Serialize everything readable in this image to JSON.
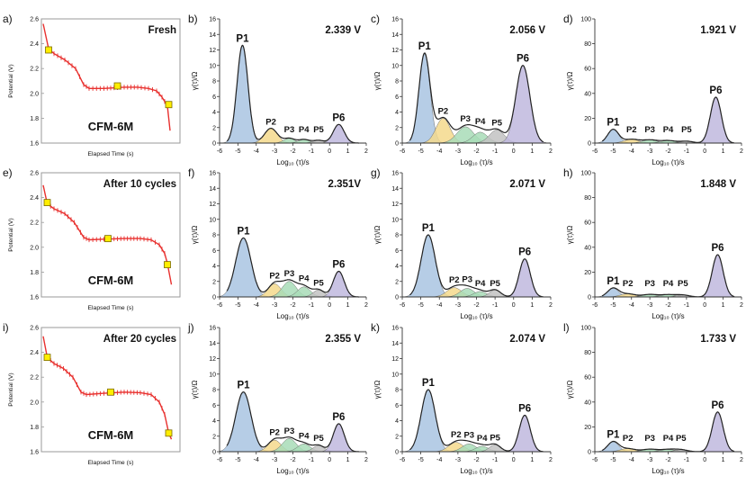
{
  "colors": {
    "discharge_line": "#e8302e",
    "marker_fill": "#ffee00",
    "marker_stroke": "#7a6a00",
    "P1": "#a9c4e2",
    "P2": "#f4d98c",
    "P3": "#a8dcb7",
    "P4": "#a8dcb7",
    "P5": "#c2c2c2",
    "P6": "#bfb8de",
    "envelope": "#222222"
  },
  "rows": [
    {
      "discharge": {
        "panel_label": "a)",
        "title": "Fresh",
        "sample": "CFM-6M",
        "ylabel": "Potential (V)",
        "xlabel": "Elapsed Time (s)",
        "ylim": [
          1.6,
          2.6
        ],
        "yticks": [
          "1.6",
          "1.8",
          "2.0",
          "2.2",
          "2.4",
          "2.6"
        ],
        "time_range": [
          0,
          100
        ],
        "curve": [
          [
            0,
            2.56
          ],
          [
            4,
            2.36
          ],
          [
            8,
            2.32
          ],
          [
            16,
            2.27
          ],
          [
            24,
            2.2
          ],
          [
            30,
            2.07
          ],
          [
            34,
            2.04
          ],
          [
            45,
            2.04
          ],
          [
            60,
            2.05
          ],
          [
            70,
            2.05
          ],
          [
            78,
            2.04
          ],
          [
            84,
            2.02
          ],
          [
            88,
            1.97
          ],
          [
            92,
            1.9
          ],
          [
            94,
            1.7
          ]
        ],
        "markers": [
          [
            4,
            2.35
          ],
          [
            55,
            2.06
          ],
          [
            93,
            1.91
          ]
        ]
      },
      "drt": [
        {
          "panel_label": "b)",
          "voltage": "2.339 V",
          "ylim": [
            0,
            16
          ],
          "peaks": [
            {
              "label": "P1",
              "mu": -4.75,
              "sigma": 0.3,
              "height": 12.6
            },
            {
              "label": "P2",
              "mu": -3.2,
              "sigma": 0.35,
              "height": 1.9
            },
            {
              "label": "P3",
              "mu": -2.2,
              "sigma": 0.3,
              "height": 0.6
            },
            {
              "label": "P4",
              "mu": -1.4,
              "sigma": 0.3,
              "height": 0.45
            },
            {
              "label": "P5",
              "mu": -0.6,
              "sigma": 0.3,
              "height": 0.35
            },
            {
              "label": "P6",
              "mu": 0.5,
              "sigma": 0.3,
              "height": 2.4
            }
          ]
        },
        {
          "panel_label": "c)",
          "voltage": "2.056 V",
          "ylim": [
            0,
            16
          ],
          "peaks": [
            {
              "label": "P1",
              "mu": -4.8,
              "sigma": 0.3,
              "height": 11.5
            },
            {
              "label": "P2",
              "mu": -3.8,
              "sigma": 0.38,
              "height": 3.2
            },
            {
              "label": "P3",
              "mu": -2.6,
              "sigma": 0.45,
              "height": 2.1
            },
            {
              "label": "P4",
              "mu": -1.8,
              "sigma": 0.4,
              "height": 1.4
            },
            {
              "label": "P5",
              "mu": -0.9,
              "sigma": 0.4,
              "height": 1.7
            },
            {
              "label": "P6",
              "mu": 0.5,
              "sigma": 0.38,
              "height": 10.0
            }
          ]
        },
        {
          "panel_label": "d)",
          "voltage": "1.921 V",
          "ylim": [
            0,
            100
          ],
          "peaks": [
            {
              "label": "P1",
              "mu": -5.0,
              "sigma": 0.3,
              "height": 11
            },
            {
              "label": "P2",
              "mu": -4.0,
              "sigma": 0.4,
              "height": 3
            },
            {
              "label": "P3",
              "mu": -3.0,
              "sigma": 0.4,
              "height": 2.5
            },
            {
              "label": "P4",
              "mu": -2.0,
              "sigma": 0.4,
              "height": 2
            },
            {
              "label": "P5",
              "mu": -1.0,
              "sigma": 0.35,
              "height": 1.5
            },
            {
              "label": "P6",
              "mu": 0.6,
              "sigma": 0.3,
              "height": 37
            }
          ]
        }
      ]
    },
    {
      "discharge": {
        "panel_label": "e)",
        "title": "After 10 cycles",
        "sample": "CFM-6M",
        "ylabel": "Potential (V)",
        "xlabel": "Elapsed Time (s)",
        "ylim": [
          1.6,
          2.6
        ],
        "yticks": [
          "1.6",
          "1.8",
          "2.0",
          "2.2",
          "2.4",
          "2.6"
        ],
        "time_range": [
          0,
          100
        ],
        "curve": [
          [
            0,
            2.5
          ],
          [
            3,
            2.35
          ],
          [
            8,
            2.31
          ],
          [
            16,
            2.27
          ],
          [
            23,
            2.2
          ],
          [
            30,
            2.08
          ],
          [
            34,
            2.06
          ],
          [
            45,
            2.065
          ],
          [
            60,
            2.07
          ],
          [
            72,
            2.07
          ],
          [
            80,
            2.06
          ],
          [
            86,
            2.02
          ],
          [
            90,
            1.95
          ],
          [
            92,
            1.87
          ],
          [
            95,
            1.7
          ]
        ],
        "markers": [
          [
            3,
            2.36
          ],
          [
            48,
            2.07
          ],
          [
            92,
            1.86
          ]
        ]
      },
      "drt": [
        {
          "panel_label": "f)",
          "voltage": "2.351V",
          "ylim": [
            0,
            16
          ],
          "peaks": [
            {
              "label": "P1",
              "mu": -4.7,
              "sigma": 0.42,
              "height": 7.6
            },
            {
              "label": "P2",
              "mu": -3.0,
              "sigma": 0.35,
              "height": 1.7
            },
            {
              "label": "P3",
              "mu": -2.2,
              "sigma": 0.38,
              "height": 2.0
            },
            {
              "label": "P4",
              "mu": -1.4,
              "sigma": 0.35,
              "height": 1.3
            },
            {
              "label": "P5",
              "mu": -0.6,
              "sigma": 0.3,
              "height": 0.9
            },
            {
              "label": "P6",
              "mu": 0.5,
              "sigma": 0.3,
              "height": 3.3
            }
          ]
        },
        {
          "panel_label": "g)",
          "voltage": "2.071 V",
          "ylim": [
            0,
            16
          ],
          "peaks": [
            {
              "label": "P1",
              "mu": -4.6,
              "sigma": 0.38,
              "height": 8.0
            },
            {
              "label": "P2",
              "mu": -3.2,
              "sigma": 0.4,
              "height": 1.2
            },
            {
              "label": "P3",
              "mu": -2.5,
              "sigma": 0.38,
              "height": 1.1
            },
            {
              "label": "P4",
              "mu": -1.8,
              "sigma": 0.35,
              "height": 0.7
            },
            {
              "label": "P5",
              "mu": -1.0,
              "sigma": 0.3,
              "height": 0.9
            },
            {
              "label": "P6",
              "mu": 0.6,
              "sigma": 0.3,
              "height": 4.9
            }
          ]
        },
        {
          "panel_label": "h)",
          "voltage": "1.848 V",
          "ylim": [
            0,
            100
          ],
          "peaks": [
            {
              "label": "P1",
              "mu": -5.0,
              "sigma": 0.3,
              "height": 7
            },
            {
              "label": "P2",
              "mu": -4.2,
              "sigma": 0.4,
              "height": 2.5
            },
            {
              "label": "P3",
              "mu": -3.0,
              "sigma": 0.4,
              "height": 2
            },
            {
              "label": "P4",
              "mu": -2.0,
              "sigma": 0.4,
              "height": 1.8
            },
            {
              "label": "P5",
              "mu": -1.2,
              "sigma": 0.35,
              "height": 1.5
            },
            {
              "label": "P6",
              "mu": 0.7,
              "sigma": 0.3,
              "height": 34
            }
          ]
        }
      ]
    },
    {
      "discharge": {
        "panel_label": "i)",
        "title": "After 20 cycles",
        "sample": "CFM-6M",
        "ylabel": "Potential (V)",
        "xlabel": "Elapsed Time (s)",
        "ylim": [
          1.6,
          2.6
        ],
        "yticks": [
          "1.6",
          "1.8",
          "2.0",
          "2.2",
          "2.4",
          "2.6"
        ],
        "time_range": [
          0,
          100
        ],
        "curve": [
          [
            0,
            2.53
          ],
          [
            3,
            2.36
          ],
          [
            8,
            2.31
          ],
          [
            15,
            2.27
          ],
          [
            22,
            2.2
          ],
          [
            28,
            2.08
          ],
          [
            32,
            2.06
          ],
          [
            45,
            2.07
          ],
          [
            60,
            2.08
          ],
          [
            72,
            2.075
          ],
          [
            80,
            2.06
          ],
          [
            86,
            2.0
          ],
          [
            90,
            1.9
          ],
          [
            93,
            1.75
          ],
          [
            95,
            1.7
          ]
        ],
        "markers": [
          [
            3,
            2.36
          ],
          [
            50,
            2.08
          ],
          [
            93,
            1.75
          ]
        ]
      },
      "drt": [
        {
          "panel_label": "j)",
          "voltage": "2.355 V",
          "ylim": [
            0,
            16
          ],
          "peaks": [
            {
              "label": "P1",
              "mu": -4.7,
              "sigma": 0.42,
              "height": 7.7
            },
            {
              "label": "P2",
              "mu": -3.0,
              "sigma": 0.35,
              "height": 1.5
            },
            {
              "label": "P3",
              "mu": -2.2,
              "sigma": 0.38,
              "height": 1.7
            },
            {
              "label": "P4",
              "mu": -1.4,
              "sigma": 0.35,
              "height": 1.0
            },
            {
              "label": "P5",
              "mu": -0.6,
              "sigma": 0.3,
              "height": 0.8
            },
            {
              "label": "P6",
              "mu": 0.5,
              "sigma": 0.3,
              "height": 3.6
            }
          ]
        },
        {
          "panel_label": "k)",
          "voltage": "2.074 V",
          "ylim": [
            0,
            16
          ],
          "peaks": [
            {
              "label": "P1",
              "mu": -4.6,
              "sigma": 0.38,
              "height": 8.0
            },
            {
              "label": "P2",
              "mu": -3.1,
              "sigma": 0.4,
              "height": 1.2
            },
            {
              "label": "P3",
              "mu": -2.4,
              "sigma": 0.38,
              "height": 1.0
            },
            {
              "label": "P4",
              "mu": -1.7,
              "sigma": 0.35,
              "height": 0.7
            },
            {
              "label": "P5",
              "mu": -1.0,
              "sigma": 0.3,
              "height": 0.9
            },
            {
              "label": "P6",
              "mu": 0.6,
              "sigma": 0.3,
              "height": 4.7
            }
          ]
        },
        {
          "panel_label": "l)",
          "voltage": "1.733 V",
          "ylim": [
            0,
            100
          ],
          "peaks": [
            {
              "label": "P1",
              "mu": -5.0,
              "sigma": 0.3,
              "height": 8
            },
            {
              "label": "P2",
              "mu": -4.2,
              "sigma": 0.4,
              "height": 2.5
            },
            {
              "label": "P3",
              "mu": -3.0,
              "sigma": 0.4,
              "height": 2
            },
            {
              "label": "P4",
              "mu": -2.0,
              "sigma": 0.4,
              "height": 1.8
            },
            {
              "label": "P5",
              "mu": -1.3,
              "sigma": 0.35,
              "height": 1.5
            },
            {
              "label": "P6",
              "mu": 0.7,
              "sigma": 0.3,
              "height": 32
            }
          ]
        }
      ]
    }
  ],
  "drt_axes": {
    "ylabel": "γ(τ)/Ω",
    "xlabel": "Log₁₀ (τ)/s",
    "xlim": [
      -6,
      2
    ],
    "xticks": [
      "-6",
      "-5",
      "-4",
      "-3",
      "-2",
      "-1",
      "0",
      "1",
      "2"
    ],
    "yticks_small": [
      "0",
      "2",
      "4",
      "6",
      "8",
      "10",
      "12",
      "14",
      "16"
    ],
    "yticks_large": [
      "0",
      "20",
      "40",
      "60",
      "80",
      "100"
    ]
  },
  "chart_data": [
    {
      "type": "line",
      "title": "Fresh",
      "xlabel": "Elapsed Time (s)",
      "ylabel": "Potential (V)",
      "ylim": [
        1.6,
        2.6
      ]
    },
    {
      "type": "area",
      "title": "2.339 V",
      "xlabel": "Log10 (τ)/s",
      "ylabel": "γ(τ)/Ω",
      "xlim": [
        -6,
        2
      ],
      "ylim": [
        0,
        16
      ],
      "categories": [
        "P1",
        "P2",
        "P3",
        "P4",
        "P5",
        "P6"
      ],
      "values": [
        12.6,
        1.9,
        0.6,
        0.45,
        0.35,
        2.4
      ]
    },
    {
      "type": "area",
      "title": "2.056 V",
      "xlim": [
        -6,
        2
      ],
      "ylim": [
        0,
        16
      ],
      "categories": [
        "P1",
        "P2",
        "P3",
        "P4",
        "P5",
        "P6"
      ],
      "values": [
        11.5,
        3.2,
        2.1,
        1.4,
        1.7,
        10.0
      ]
    },
    {
      "type": "area",
      "title": "1.921 V",
      "xlim": [
        -6,
        2
      ],
      "ylim": [
        0,
        100
      ],
      "categories": [
        "P1",
        "P2",
        "P3",
        "P4",
        "P5",
        "P6"
      ],
      "values": [
        11,
        3,
        2.5,
        2,
        1.5,
        37
      ]
    },
    {
      "type": "line",
      "title": "After 10 cycles",
      "xlabel": "Elapsed Time (s)",
      "ylabel": "Potential (V)",
      "ylim": [
        1.6,
        2.6
      ]
    },
    {
      "type": "area",
      "title": "2.351V",
      "xlim": [
        -6,
        2
      ],
      "ylim": [
        0,
        16
      ],
      "categories": [
        "P1",
        "P2",
        "P3",
        "P4",
        "P5",
        "P6"
      ],
      "values": [
        7.6,
        1.7,
        2.0,
        1.3,
        0.9,
        3.3
      ]
    },
    {
      "type": "area",
      "title": "2.071 V",
      "xlim": [
        -6,
        2
      ],
      "ylim": [
        0,
        16
      ],
      "categories": [
        "P1",
        "P2",
        "P3",
        "P4",
        "P5",
        "P6"
      ],
      "values": [
        8.0,
        1.2,
        1.1,
        0.7,
        0.9,
        4.9
      ]
    },
    {
      "type": "area",
      "title": "1.848 V",
      "xlim": [
        -6,
        2
      ],
      "ylim": [
        0,
        100
      ],
      "categories": [
        "P1",
        "P2",
        "P3",
        "P4",
        "P5",
        "P6"
      ],
      "values": [
        7,
        2.5,
        2,
        1.8,
        1.5,
        34
      ]
    },
    {
      "type": "line",
      "title": "After 20 cycles",
      "xlabel": "Elapsed Time (s)",
      "ylabel": "Potential (V)",
      "ylim": [
        1.6,
        2.6
      ]
    },
    {
      "type": "area",
      "title": "2.355 V",
      "xlim": [
        -6,
        2
      ],
      "ylim": [
        0,
        16
      ],
      "categories": [
        "P1",
        "P2",
        "P3",
        "P4",
        "P5",
        "P6"
      ],
      "values": [
        7.7,
        1.5,
        1.7,
        1.0,
        0.8,
        3.6
      ]
    },
    {
      "type": "area",
      "title": "2.074 V",
      "xlim": [
        -6,
        2
      ],
      "ylim": [
        0,
        16
      ],
      "categories": [
        "P1",
        "P2",
        "P3",
        "P4",
        "P5",
        "P6"
      ],
      "values": [
        8.0,
        1.2,
        1.0,
        0.7,
        0.9,
        4.7
      ]
    },
    {
      "type": "area",
      "title": "1.733 V",
      "xlim": [
        -6,
        2
      ],
      "ylim": [
        0,
        100
      ],
      "categories": [
        "P1",
        "P2",
        "P3",
        "P4",
        "P5",
        "P6"
      ],
      "values": [
        8,
        2.5,
        2,
        1.8,
        1.5,
        32
      ]
    }
  ]
}
